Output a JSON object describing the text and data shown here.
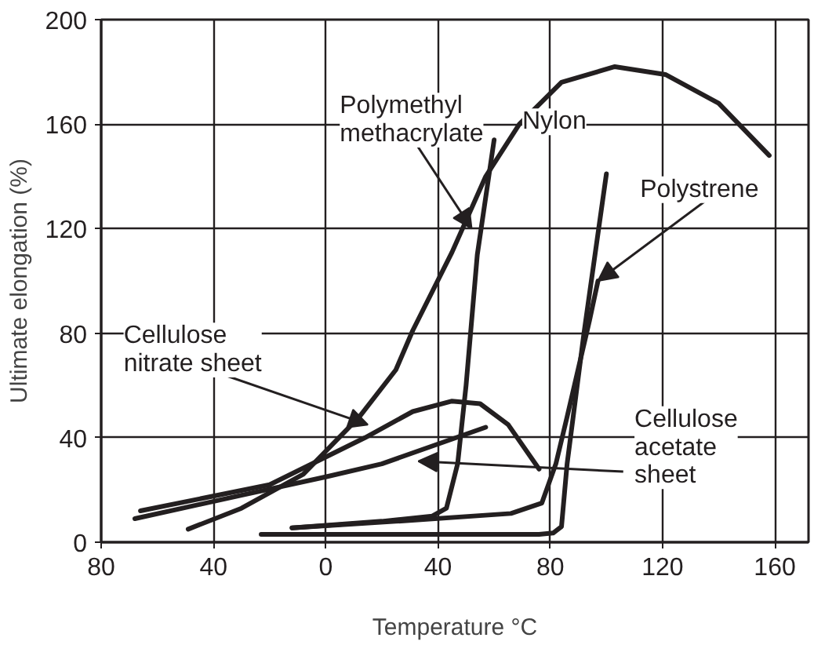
{
  "chart_data": {
    "type": "line",
    "xlabel": "Temperature °C",
    "ylabel": "Ultimate elongation (%)",
    "xlim": [
      -80,
      172
    ],
    "ylim": [
      0,
      200
    ],
    "xticks": [
      {
        "value": -80,
        "label": "80"
      },
      {
        "value": -40,
        "label": "40"
      },
      0,
      40,
      80,
      120,
      160
    ],
    "yticks": [
      0,
      40,
      80,
      120,
      160,
      200
    ],
    "grid": true,
    "series": [
      {
        "name": "Nylon",
        "color": "#231f20",
        "x": [
          -49,
          -30,
          -8,
          12,
          25,
          31,
          45,
          57,
          69,
          84,
          103,
          121,
          140,
          158
        ],
        "values": [
          5,
          13,
          26,
          48,
          66,
          81,
          111,
          140,
          160,
          176,
          182,
          179,
          168,
          148
        ]
      },
      {
        "name": "Polymethyl methacrylate",
        "color": "#231f20",
        "x": [
          -12,
          20,
          38,
          43,
          47,
          50,
          54,
          60
        ],
        "values": [
          5.5,
          8,
          10,
          13,
          30,
          60,
          110,
          154
        ]
      },
      {
        "name": "Polystrene",
        "color": "#231f20",
        "x": [
          -23,
          40,
          76,
          81,
          84,
          86,
          92,
          100
        ],
        "values": [
          3,
          3,
          3,
          3.5,
          6,
          30,
          80,
          141
        ]
      },
      {
        "name": null,
        "color": "#231f20",
        "x": [
          -12,
          25,
          66,
          77,
          82,
          86,
          94,
          97
        ],
        "values": [
          5.5,
          8,
          11,
          15,
          30,
          48,
          85,
          100
        ]
      },
      {
        "name": "Cellulose nitrate sheet",
        "color": "#231f20",
        "x": [
          -66,
          -20,
          14,
          31,
          45,
          55,
          65,
          76
        ],
        "values": [
          12,
          22,
          40,
          50,
          54,
          53,
          45,
          28
        ]
      },
      {
        "name": "Cellulose acetate sheet",
        "color": "#231f20",
        "x": [
          -68,
          -30,
          0,
          20,
          57
        ],
        "values": [
          9,
          18,
          25,
          30,
          44
        ]
      }
    ]
  }
}
